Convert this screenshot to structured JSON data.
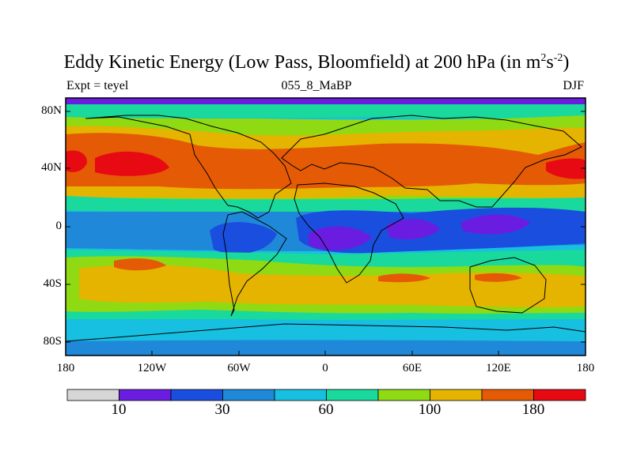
{
  "title": {
    "main": "Eddy Kinetic Energy (Low Pass, Bloomfield) at 200 hPa (in m",
    "sup1": "2",
    "mid": "s",
    "sup2": "-2",
    "end": ")"
  },
  "subtitle": {
    "left": "Expt = teyel",
    "center": "055_8_MaBP",
    "right": "DJF"
  },
  "axes": {
    "y_ticks": [
      "80N",
      "40N",
      "0",
      "40S",
      "80S"
    ],
    "x_ticks": [
      "180",
      "120W",
      "60W",
      "0",
      "60E",
      "120E",
      "180"
    ]
  },
  "colorbar": {
    "colors": [
      "#d6d6d6",
      "#6a1de0",
      "#1a4ede",
      "#1f88d8",
      "#17bfe0",
      "#19d99c",
      "#8fda12",
      "#e5b400",
      "#e55a05",
      "#e80a12"
    ],
    "labels": [
      "10",
      "30",
      "60",
      "100",
      "180"
    ]
  },
  "colors": {
    "frame_top": "#5a5acd"
  }
}
